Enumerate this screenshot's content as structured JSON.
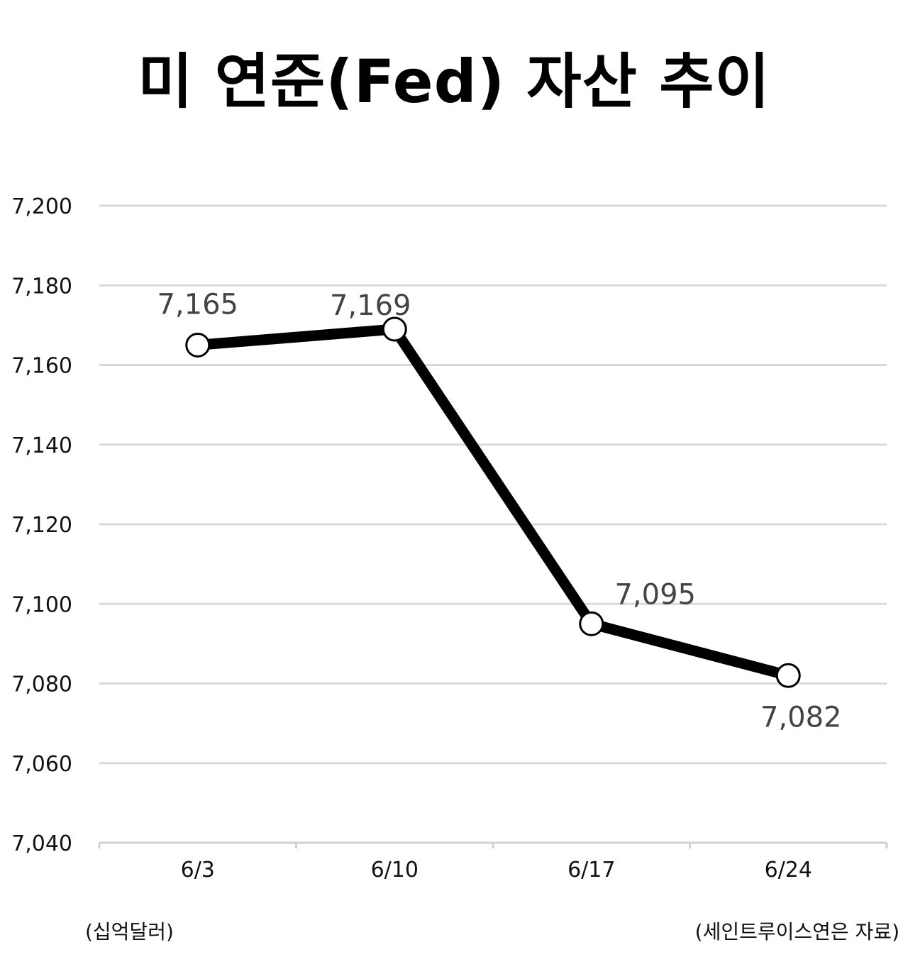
{
  "chart_data": {
    "type": "line",
    "title": "미 연준(Fed) 자산 추이",
    "unit_note": "(십억달러)",
    "source_note": "(세인트루이스연은 자료)",
    "categories": [
      "6/3",
      "6/10",
      "6/17",
      "6/24"
    ],
    "values": [
      7165,
      7169,
      7095,
      7082
    ],
    "data_labels": [
      "7,165",
      "7,169",
      "7,095",
      "7,082"
    ],
    "ylim": [
      7040,
      7200
    ],
    "yticks": [
      7040,
      7060,
      7080,
      7100,
      7120,
      7140,
      7160,
      7180,
      7200
    ],
    "ytick_labels": [
      "7,040",
      "7,060",
      "7,080",
      "7,100",
      "7,120",
      "7,140",
      "7,160",
      "7,180",
      "7,200"
    ],
    "grid": true,
    "line_color": "#000000",
    "grid_color": "#d9d9d9"
  }
}
